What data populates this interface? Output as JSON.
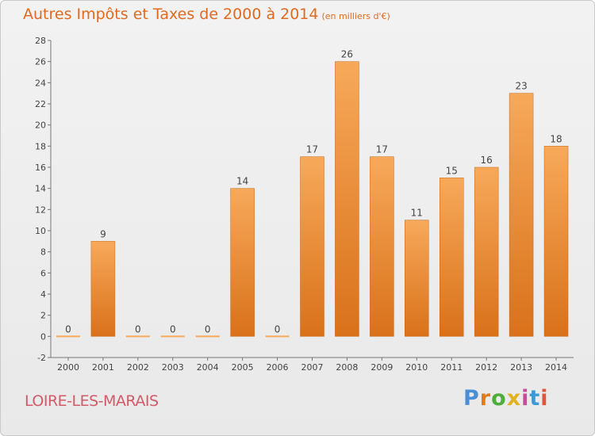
{
  "header": {
    "title": "Autres Impôts et Taxes de 2000 à 2014",
    "unit_note": "(en milliers d'€)"
  },
  "footer": {
    "location": "LOIRE-LES-MARAIS",
    "brand": "Proxiti",
    "brand_colors": [
      "#4a8fd6",
      "#e07b22",
      "#4caf3c",
      "#e0b326",
      "#c94a9a",
      "#3a9ad9",
      "#e0553d"
    ]
  },
  "chart_data": {
    "type": "bar",
    "categories": [
      "2000",
      "2001",
      "2002",
      "2003",
      "2004",
      "2005",
      "2006",
      "2007",
      "2008",
      "2009",
      "2010",
      "2011",
      "2012",
      "2013",
      "2014"
    ],
    "values": [
      0,
      9,
      0,
      0,
      0,
      14,
      0,
      17,
      26,
      17,
      11,
      15,
      16,
      23,
      18
    ],
    "data_labels": [
      "0",
      "9",
      "0",
      "0",
      "0",
      "14",
      "0",
      "17",
      "26",
      "17",
      "11",
      "15",
      "16",
      "23",
      "18"
    ],
    "y_ticks": [
      "-2",
      "0",
      "2",
      "4",
      "6",
      "8",
      "10",
      "12",
      "14",
      "16",
      "18",
      "20",
      "22",
      "24",
      "26",
      "28"
    ],
    "ylim": [
      -2,
      28
    ],
    "y_step": 2,
    "grid": false,
    "bar_color_light": "#f7a95a",
    "bar_color_dark": "#d9711a",
    "axis_color": "#777777"
  }
}
